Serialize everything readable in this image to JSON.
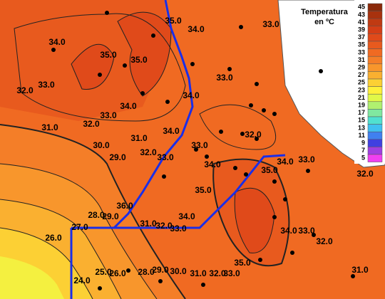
{
  "legend": {
    "title": [
      "Temperatura",
      "en ºC"
    ],
    "scale": [
      {
        "label": "45",
        "color": "#8b2a0a"
      },
      {
        "label": "43",
        "color": "#a8320e"
      },
      {
        "label": "41",
        "color": "#c03a12"
      },
      {
        "label": "39",
        "color": "#d43e16"
      },
      {
        "label": "37",
        "color": "#e04a1a"
      },
      {
        "label": "35",
        "color": "#e85a1e"
      },
      {
        "label": "33",
        "color": "#f06a22"
      },
      {
        "label": "31",
        "color": "#f47e28"
      },
      {
        "label": "29",
        "color": "#f8962c"
      },
      {
        "label": "27",
        "color": "#fab030"
      },
      {
        "label": "25",
        "color": "#fcd034"
      },
      {
        "label": "23",
        "color": "#fef03a"
      },
      {
        "label": "21",
        "color": "#e0f848"
      },
      {
        "label": "19",
        "color": "#b0f070"
      },
      {
        "label": "17",
        "color": "#80e8a0"
      },
      {
        "label": "15",
        "color": "#50e0d0"
      },
      {
        "label": "13",
        "color": "#40c0f0"
      },
      {
        "label": "11",
        "color": "#4080f0"
      },
      {
        "label": "9",
        "color": "#4040e0"
      },
      {
        "label": "7",
        "color": "#a040e0"
      },
      {
        "label": "5",
        "color": "#f040f0"
      }
    ]
  },
  "contour_labels": [
    "35.0",
    "34.0",
    "33.0",
    "34.0",
    "35.0",
    "35.0",
    "33.0",
    "32.0",
    "34.0",
    "33.0",
    "34.0",
    "33.0",
    "32.0",
    "31.0",
    "30.0",
    "31.0",
    "29.0",
    "32.0",
    "33.0",
    "34.0",
    "33.0",
    "32.0",
    "34.0",
    "35.0",
    "35.0",
    "34.0",
    "33.0",
    "32.0",
    "36.0",
    "29.0",
    "28.0",
    "27.0",
    "31.0",
    "32.0",
    "33.0",
    "34.0",
    "26.0",
    "34.0",
    "33.0",
    "32.0",
    "35.0",
    "33.0",
    "32.0",
    "31.0",
    "30.0",
    "29.0",
    "28.0",
    "26.0",
    "25.0",
    "24.0",
    "31.0"
  ]
}
